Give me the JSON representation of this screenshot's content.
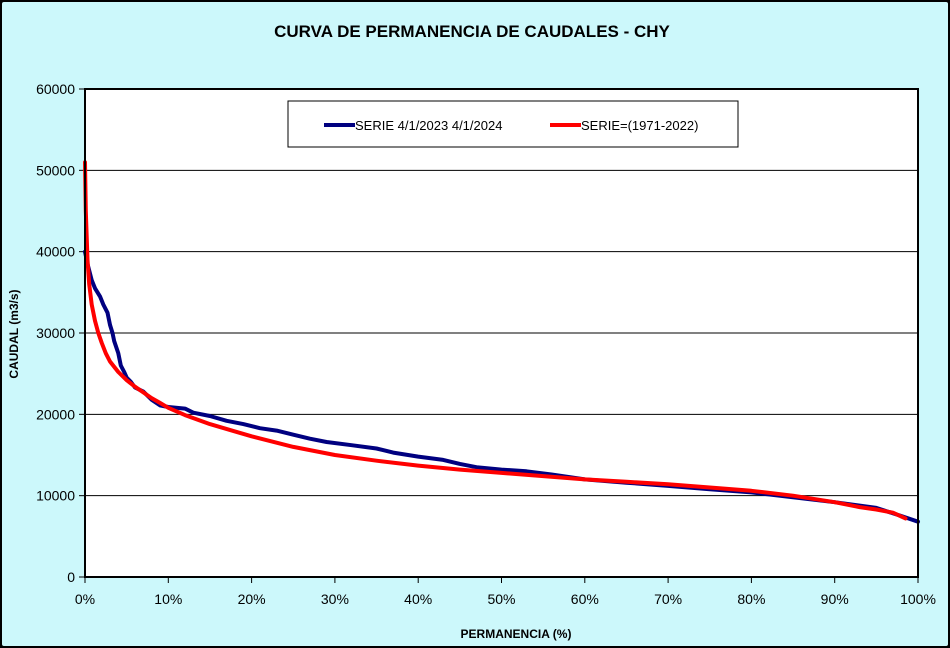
{
  "chart_data": {
    "type": "line",
    "title": "CURVA DE PERMANENCIA DE CAUDALES - CHY",
    "xlabel": "PERMANENCIA (%)",
    "ylabel": "CAUDAL  (m3/s)",
    "xlim": [
      0,
      100
    ],
    "ylim": [
      0,
      60000
    ],
    "x_ticks": [
      "0%",
      "10%",
      "20%",
      "30%",
      "40%",
      "50%",
      "60%",
      "70%",
      "80%",
      "90%",
      "100%"
    ],
    "y_ticks": [
      "0",
      "10000",
      "20000",
      "30000",
      "40000",
      "50000",
      "60000"
    ],
    "grid": "horizontal",
    "legend_position": "top-center",
    "series": [
      {
        "name": "SERIE 4/1/2023 4/1/2024",
        "color": "#000080",
        "x": [
          0,
          0.3,
          0.8,
          1.2,
          1.8,
          2.2,
          2.7,
          3.0,
          3.3,
          3.5,
          4.0,
          4.3,
          4.7,
          5.0,
          5.5,
          6.0,
          7.0,
          8.0,
          9.0,
          10.0,
          12.0,
          13.0,
          15.0,
          17.0,
          19.0,
          21.0,
          23.0,
          25.0,
          27.0,
          29.0,
          32.0,
          35.0,
          37.0,
          40.0,
          43.0,
          45.0,
          47.0,
          50.0,
          53.0,
          56.0,
          60.0,
          65.0,
          70.0,
          75.0,
          80.0,
          85.0,
          90.0,
          95.0,
          98.0,
          100.0
        ],
        "y": [
          40000,
          38500,
          36500,
          35500,
          34500,
          33500,
          32500,
          31000,
          30000,
          29000,
          27500,
          26000,
          25200,
          24500,
          24000,
          23300,
          22800,
          21800,
          21100,
          20900,
          20700,
          20200,
          19800,
          19200,
          18800,
          18300,
          18000,
          17500,
          17000,
          16600,
          16200,
          15800,
          15300,
          14800,
          14400,
          13900,
          13500,
          13200,
          13000,
          12600,
          12000,
          11600,
          11200,
          10800,
          10400,
          9800,
          9200,
          8500,
          7500,
          6800
        ]
      },
      {
        "name": "SERIE=(1971-2022)",
        "color": "#ff0000",
        "x": [
          0,
          0.1,
          0.3,
          0.5,
          0.8,
          1.2,
          1.6,
          2.0,
          2.5,
          3.0,
          4.0,
          5.0,
          6.0,
          7.0,
          8.0,
          9.0,
          10.0,
          12.0,
          15.0,
          18.0,
          20.0,
          25.0,
          30.0,
          35.0,
          40.0,
          45.0,
          50.0,
          55.0,
          60.0,
          65.0,
          70.0,
          75.0,
          80.0,
          85.0,
          90.0,
          93.0,
          95.0,
          97.0,
          98.5
        ],
        "y": [
          51000,
          45000,
          39000,
          36000,
          33500,
          31500,
          30000,
          28800,
          27500,
          26500,
          25200,
          24200,
          23400,
          22700,
          22000,
          21400,
          20800,
          19900,
          18800,
          17900,
          17300,
          16000,
          15000,
          14300,
          13700,
          13200,
          12800,
          12400,
          12000,
          11700,
          11400,
          11000,
          10600,
          10000,
          9200,
          8600,
          8300,
          7900,
          7200
        ]
      }
    ]
  }
}
